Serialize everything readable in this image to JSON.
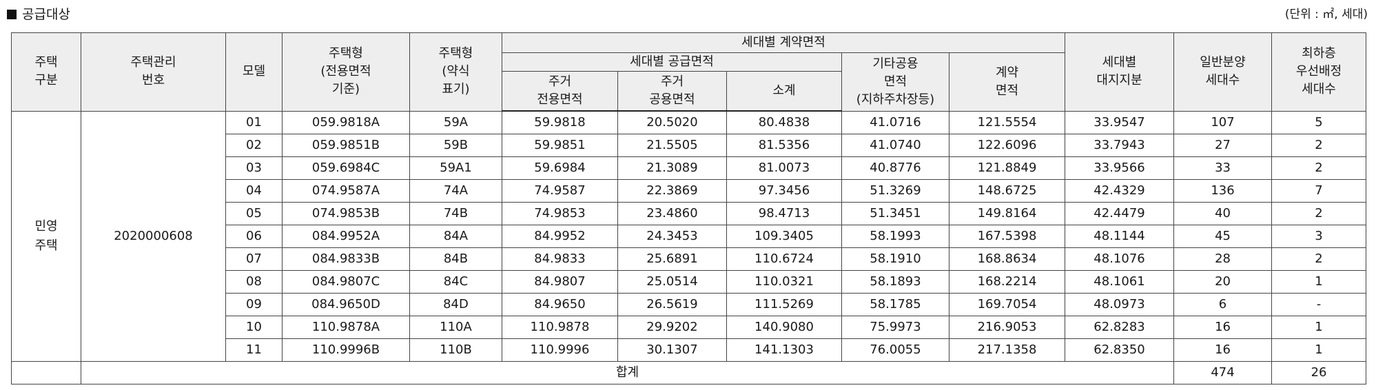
{
  "section_title": "공급대상",
  "unit_note": "(단위 : ㎡, 세대)",
  "headers": {
    "type_cat": [
      "주택",
      "구분"
    ],
    "mgmt_no": [
      "주택관리",
      "번호"
    ],
    "model": "모델",
    "house_type": [
      "주택형",
      "(전용면적",
      "기준)"
    ],
    "house_type_short": [
      "주택형",
      "(약식",
      "표기)"
    ],
    "contract_area": "세대별 계약면적",
    "supply_area": "세대별 공급면적",
    "exclusive": [
      "주거",
      "전용면적"
    ],
    "common": [
      "주거",
      "공용면적"
    ],
    "subtotal": "소계",
    "other_common": [
      "기타공용",
      "면적",
      "(지하주차장등)"
    ],
    "contract": [
      "계약",
      "면적"
    ],
    "land_share": [
      "세대별",
      "대지지분"
    ],
    "general_units": [
      "일반분양",
      "세대수"
    ],
    "lowest_floor": [
      "최하층",
      "우선배정",
      "세대수"
    ]
  },
  "category": [
    "민영",
    "주택"
  ],
  "management_number": "2020000608",
  "rows": [
    {
      "model": "01",
      "type": "059.9818A",
      "short": "59A",
      "exclusive": "59.9818",
      "common": "20.5020",
      "subtotal": "80.4838",
      "other": "41.0716",
      "contract": "121.5554",
      "land": "33.9547",
      "units": "107",
      "lowest": "5"
    },
    {
      "model": "02",
      "type": "059.9851B",
      "short": "59B",
      "exclusive": "59.9851",
      "common": "21.5505",
      "subtotal": "81.5356",
      "other": "41.0740",
      "contract": "122.6096",
      "land": "33.7943",
      "units": "27",
      "lowest": "2"
    },
    {
      "model": "03",
      "type": "059.6984C",
      "short": "59A1",
      "exclusive": "59.6984",
      "common": "21.3089",
      "subtotal": "81.0073",
      "other": "40.8776",
      "contract": "121.8849",
      "land": "33.9566",
      "units": "33",
      "lowest": "2"
    },
    {
      "model": "04",
      "type": "074.9587A",
      "short": "74A",
      "exclusive": "74.9587",
      "common": "22.3869",
      "subtotal": "97.3456",
      "other": "51.3269",
      "contract": "148.6725",
      "land": "42.4329",
      "units": "136",
      "lowest": "7"
    },
    {
      "model": "05",
      "type": "074.9853B",
      "short": "74B",
      "exclusive": "74.9853",
      "common": "23.4860",
      "subtotal": "98.4713",
      "other": "51.3451",
      "contract": "149.8164",
      "land": "42.4479",
      "units": "40",
      "lowest": "2"
    },
    {
      "model": "06",
      "type": "084.9952A",
      "short": "84A",
      "exclusive": "84.9952",
      "common": "24.3453",
      "subtotal": "109.3405",
      "other": "58.1993",
      "contract": "167.5398",
      "land": "48.1144",
      "units": "45",
      "lowest": "3"
    },
    {
      "model": "07",
      "type": "084.9833B",
      "short": "84B",
      "exclusive": "84.9833",
      "common": "25.6891",
      "subtotal": "110.6724",
      "other": "58.1910",
      "contract": "168.8634",
      "land": "48.1076",
      "units": "28",
      "lowest": "2"
    },
    {
      "model": "08",
      "type": "084.9807C",
      "short": "84C",
      "exclusive": "84.9807",
      "common": "25.0514",
      "subtotal": "110.0321",
      "other": "58.1893",
      "contract": "168.2214",
      "land": "48.1061",
      "units": "20",
      "lowest": "1"
    },
    {
      "model": "09",
      "type": "084.9650D",
      "short": "84D",
      "exclusive": "84.9650",
      "common": "26.5619",
      "subtotal": "111.5269",
      "other": "58.1785",
      "contract": "169.7054",
      "land": "48.0973",
      "units": "6",
      "lowest": "-"
    },
    {
      "model": "10",
      "type": "110.9878A",
      "short": "110A",
      "exclusive": "110.9878",
      "common": "29.9202",
      "subtotal": "140.9080",
      "other": "75.9973",
      "contract": "216.9053",
      "land": "62.8283",
      "units": "16",
      "lowest": "1"
    },
    {
      "model": "11",
      "type": "110.9996B",
      "short": "110B",
      "exclusive": "110.9996",
      "common": "30.1307",
      "subtotal": "141.1303",
      "other": "76.0055",
      "contract": "217.1358",
      "land": "62.8350",
      "units": "16",
      "lowest": "1"
    }
  ],
  "total": {
    "label": "합계",
    "units": "474",
    "lowest": "26"
  }
}
